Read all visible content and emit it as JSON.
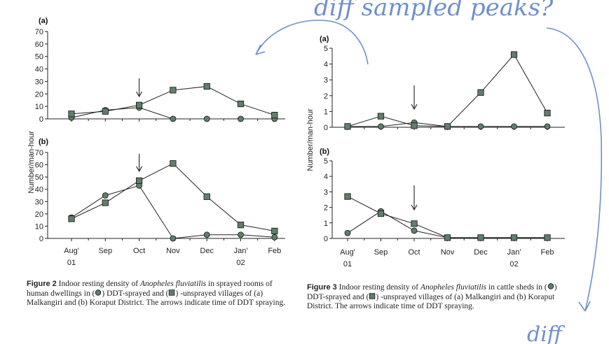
{
  "figure2": {
    "caption": {
      "number": "Figure 2",
      "text_before": " Indoor resting density of ",
      "species": "Anopheles fluviatilis",
      "text_after_1": " in sprayed rooms of human dwellings in (",
      "text_after_2": ") DDT-sprayed and (",
      "text_after_3": ") -unsprayed villages of (a) Malkangiri and (b) Koraput District. The arrows indicate time of DDT spraying."
    },
    "ylabel": "Number/man-hour",
    "panel_a_label": "(a)",
    "panel_b_label": "(b)",
    "x_labels": [
      "Aug'",
      "Sep",
      "Oct",
      "Nov",
      "Dec",
      "Jan'",
      "Feb"
    ],
    "x_sublabels": [
      "01",
      "",
      "",
      "",
      "",
      "02",
      ""
    ],
    "y_ticks_a": [
      "0",
      "10",
      "20",
      "30",
      "40",
      "50",
      "60",
      "70"
    ],
    "y_ticks_b": [
      "0",
      "10",
      "20",
      "30",
      "40",
      "50",
      "60",
      "70"
    ]
  },
  "figure3": {
    "caption": {
      "number": "Figure 3",
      "text_before": " Indoor resting density of ",
      "species": "Anopheles fluviatilis",
      "text_after_1": " in cattle sheds in (",
      "text_after_2": ") DDT-sprayed and (",
      "text_after_3": ") -unsprayed villages of (a) Malkangiri and (b) Koraput District. The arrows indicate time of DDT spraying."
    },
    "ylabel": "Number/man-hour",
    "panel_a_label": "(a)",
    "panel_b_label": "(b)",
    "x_labels": [
      "Aug'",
      "Sep",
      "Oct",
      "Nov",
      "Dec",
      "Jan'",
      "Feb"
    ],
    "x_sublabels": [
      "01",
      "",
      "",
      "",
      "",
      "02",
      ""
    ],
    "y_ticks_a": [
      "0",
      "1",
      "2",
      "3",
      "4",
      "5"
    ],
    "y_ticks_b": [
      "0",
      "1",
      "2",
      "3",
      "4",
      "5"
    ]
  },
  "annotations": {
    "top_note": "diff sampled peaks?",
    "bottom_note": "diff",
    "ink_color": "#6f8fcf"
  },
  "chart_data": [
    {
      "type": "line",
      "panel": "Figure 2 (a)",
      "categories": [
        "Aug' 01",
        "Sep",
        "Oct",
        "Nov",
        "Dec",
        "Jan' 02",
        "Feb"
      ],
      "ylim": [
        0,
        70
      ],
      "spray_arrow_at": "Oct",
      "series": [
        {
          "marker": "circle",
          "values": [
            1,
            7,
            9,
            0,
            0,
            0,
            0
          ]
        },
        {
          "marker": "square",
          "values": [
            4,
            6,
            11,
            23,
            26,
            12,
            3
          ]
        }
      ]
    },
    {
      "type": "line",
      "panel": "Figure 2 (b)",
      "categories": [
        "Aug' 01",
        "Sep",
        "Oct",
        "Nov",
        "Dec",
        "Jan' 02",
        "Feb"
      ],
      "ylim": [
        0,
        70
      ],
      "spray_arrow_at": "Oct",
      "series": [
        {
          "marker": "circle",
          "values": [
            17,
            35,
            43,
            0,
            3,
            3,
            1
          ]
        },
        {
          "marker": "square",
          "values": [
            16,
            29,
            47,
            61,
            34,
            11,
            6
          ]
        }
      ]
    },
    {
      "type": "line",
      "panel": "Figure 3 (a)",
      "categories": [
        "Aug' 01",
        "Sep",
        "Oct",
        "Nov",
        "Dec",
        "Jan' 02",
        "Feb"
      ],
      "ylim": [
        0,
        5
      ],
      "spray_arrow_at": "Oct",
      "series": [
        {
          "marker": "circle",
          "values": [
            0.05,
            0.05,
            0.3,
            0.05,
            0.05,
            0.05,
            0.05
          ]
        },
        {
          "marker": "square",
          "values": [
            0.05,
            0.7,
            0.1,
            0.05,
            2.2,
            4.6,
            0.9
          ]
        }
      ]
    },
    {
      "type": "line",
      "panel": "Figure 3 (b)",
      "categories": [
        "Aug' 01",
        "Sep",
        "Oct",
        "Nov",
        "Dec",
        "Jan' 02",
        "Feb"
      ],
      "ylim": [
        0,
        5
      ],
      "spray_arrow_at": "Oct",
      "series": [
        {
          "marker": "circle",
          "values": [
            0.35,
            1.75,
            0.5,
            0.05,
            0.05,
            0.05,
            0.05
          ]
        },
        {
          "marker": "square",
          "values": [
            2.7,
            1.6,
            0.95,
            0.05,
            0.05,
            0.05,
            0.05
          ]
        }
      ]
    }
  ]
}
